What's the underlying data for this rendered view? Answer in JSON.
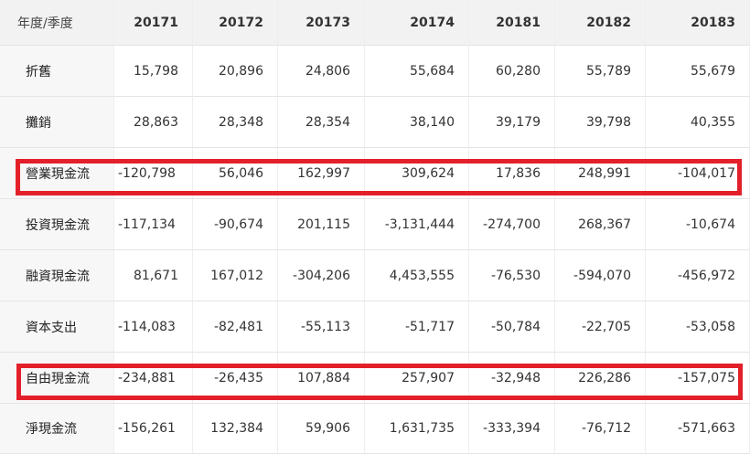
{
  "header": {
    "label": "年度/季度",
    "columns": [
      "20171",
      "20172",
      "20173",
      "20174",
      "20181",
      "20182",
      "20183"
    ]
  },
  "rows": [
    {
      "label": "折舊",
      "values": [
        "15,798",
        "20,896",
        "24,806",
        "55,684",
        "60,280",
        "55,789",
        "55,679"
      ]
    },
    {
      "label": "攤銷",
      "values": [
        "28,863",
        "28,348",
        "28,354",
        "38,140",
        "39,179",
        "39,798",
        "40,355"
      ]
    },
    {
      "label": "營業現金流",
      "values": [
        "-120,798",
        "56,046",
        "162,997",
        "309,624",
        "17,836",
        "248,991",
        "-104,017"
      ]
    },
    {
      "label": "投資現金流",
      "values": [
        "-117,134",
        "-90,674",
        "201,115",
        "-3,131,444",
        "-274,700",
        "268,367",
        "-10,674"
      ]
    },
    {
      "label": "融資現金流",
      "values": [
        "81,671",
        "167,012",
        "-304,206",
        "4,453,555",
        "-76,530",
        "-594,070",
        "-456,972"
      ]
    },
    {
      "label": "資本支出",
      "values": [
        "-114,083",
        "-82,481",
        "-55,113",
        "-51,717",
        "-50,784",
        "-22,705",
        "-53,058"
      ]
    },
    {
      "label": "自由現金流",
      "values": [
        "-234,881",
        "-26,435",
        "107,884",
        "257,907",
        "-32,948",
        "226,286",
        "-157,075"
      ]
    },
    {
      "label": "淨現金流",
      "values": [
        "-156,261",
        "132,384",
        "59,906",
        "1,631,735",
        "-333,394",
        "-76,712",
        "-571,663"
      ]
    }
  ],
  "colors": {
    "highlight": "#e3202a",
    "header_bg": "#f2f2f2",
    "label_bg": "#f7f7f7"
  }
}
